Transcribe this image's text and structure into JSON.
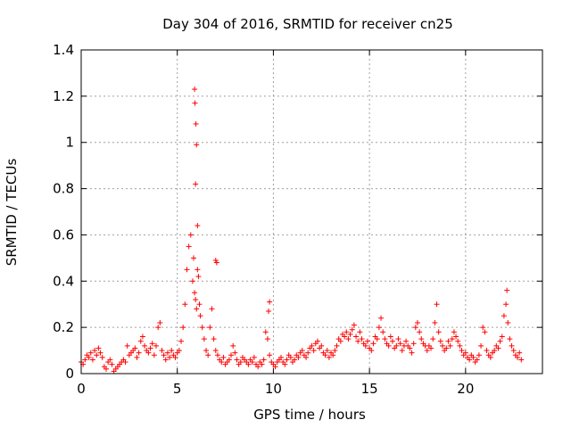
{
  "chart_data": {
    "type": "scatter",
    "title": "Day 304 of 2016, SRMTID for receiver cn25",
    "xlabel": "GPS time / hours",
    "ylabel": "SRMTID / TECUs",
    "xlim": [
      0,
      24
    ],
    "ylim": [
      0,
      1.4
    ],
    "xticks": [
      0,
      5,
      10,
      15,
      20
    ],
    "xtick_labels": [
      "0",
      "5",
      "10",
      "15",
      "20"
    ],
    "yticks": [
      0,
      0.2,
      0.4,
      0.6,
      0.8,
      1,
      1.2,
      1.4
    ],
    "ytick_labels": [
      "0",
      "0.2",
      "0.4",
      "0.6",
      "0.8",
      "1",
      "1.2",
      "1.4"
    ],
    "grid": true,
    "marker": "+",
    "series": [
      {
        "color": "#ff0000",
        "x": [
          0.0,
          0.1,
          0.2,
          0.3,
          0.4,
          0.5,
          0.6,
          0.7,
          0.8,
          0.9,
          1.0,
          1.1,
          1.2,
          1.3,
          1.4,
          1.5,
          1.6,
          1.7,
          1.8,
          1.9,
          2.0,
          2.1,
          2.2,
          2.3,
          2.4,
          2.5,
          2.6,
          2.7,
          2.8,
          2.9,
          3.0,
          3.1,
          3.2,
          3.3,
          3.4,
          3.5,
          3.6,
          3.7,
          3.8,
          3.9,
          4.0,
          4.1,
          4.2,
          4.3,
          4.4,
          4.5,
          4.6,
          4.7,
          4.8,
          4.9,
          5.0,
          5.1,
          5.2,
          5.3,
          5.4,
          5.5,
          5.6,
          5.7,
          5.8,
          5.85,
          5.9,
          5.95,
          6.0,
          6.05,
          6.1,
          6.15,
          6.2,
          6.3,
          6.4,
          6.5,
          6.6,
          6.7,
          6.8,
          6.9,
          7.0,
          7.1,
          7.2,
          7.3,
          7.4,
          7.5,
          7.6,
          7.7,
          7.8,
          7.9,
          8.0,
          8.1,
          8.2,
          8.3,
          8.4,
          8.5,
          8.6,
          8.7,
          8.8,
          8.9,
          9.0,
          9.1,
          9.2,
          9.3,
          9.4,
          9.5,
          9.6,
          9.7,
          9.8,
          9.9,
          10.0,
          10.1,
          10.2,
          10.3,
          10.4,
          10.5,
          10.6,
          10.7,
          10.8,
          10.9,
          11.0,
          11.1,
          11.2,
          11.3,
          11.4,
          11.5,
          11.6,
          11.7,
          11.8,
          11.9,
          12.0,
          12.1,
          12.2,
          12.3,
          12.4,
          12.5,
          12.6,
          12.7,
          12.8,
          12.9,
          13.0,
          13.1,
          13.2,
          13.3,
          13.4,
          13.5,
          13.6,
          13.7,
          13.8,
          13.9,
          14.0,
          14.1,
          14.2,
          14.3,
          14.4,
          14.5,
          14.6,
          14.7,
          14.8,
          14.9,
          15.0,
          15.1,
          15.2,
          15.3,
          15.4,
          15.5,
          15.6,
          15.7,
          15.8,
          15.9,
          16.0,
          16.1,
          16.2,
          16.3,
          16.4,
          16.5,
          16.6,
          16.7,
          16.8,
          16.9,
          17.0,
          17.1,
          17.2,
          17.3,
          17.4,
          17.5,
          17.6,
          17.7,
          17.8,
          17.9,
          18.0,
          18.1,
          18.2,
          18.3,
          18.4,
          18.5,
          18.6,
          18.7,
          18.8,
          18.9,
          19.0,
          19.1,
          19.2,
          19.3,
          19.4,
          19.5,
          19.6,
          19.7,
          19.8,
          19.9,
          20.0,
          20.1,
          20.2,
          20.3,
          20.4,
          20.5,
          20.6,
          20.7,
          20.8,
          20.9,
          21.0,
          21.1,
          21.2,
          21.3,
          21.4,
          21.5,
          21.6,
          21.7,
          21.8,
          21.9,
          22.0,
          22.1,
          22.2,
          22.3,
          22.4,
          22.5,
          22.6,
          22.7,
          22.8,
          22.9,
          9.8,
          9.75,
          22.15,
          7.0,
          7.05,
          6.05,
          5.95,
          5.9,
          5.92,
          5.97,
          6.0
        ],
        "y": [
          0.05,
          0.04,
          0.06,
          0.08,
          0.07,
          0.09,
          0.06,
          0.1,
          0.08,
          0.11,
          0.09,
          0.07,
          0.03,
          0.02,
          0.05,
          0.06,
          0.04,
          0.01,
          0.02,
          0.03,
          0.04,
          0.05,
          0.06,
          0.05,
          0.12,
          0.08,
          0.09,
          0.1,
          0.11,
          0.07,
          0.09,
          0.14,
          0.16,
          0.12,
          0.1,
          0.09,
          0.11,
          0.13,
          0.08,
          0.12,
          0.2,
          0.22,
          0.1,
          0.08,
          0.06,
          0.09,
          0.07,
          0.1,
          0.08,
          0.07,
          0.09,
          0.1,
          0.14,
          0.2,
          0.3,
          0.45,
          0.55,
          0.6,
          0.4,
          0.5,
          0.35,
          0.32,
          0.28,
          0.45,
          0.42,
          0.3,
          0.25,
          0.2,
          0.15,
          0.1,
          0.08,
          0.2,
          0.28,
          0.15,
          0.1,
          0.08,
          0.06,
          0.05,
          0.07,
          0.04,
          0.05,
          0.06,
          0.08,
          0.12,
          0.09,
          0.06,
          0.04,
          0.05,
          0.07,
          0.06,
          0.05,
          0.04,
          0.06,
          0.05,
          0.07,
          0.04,
          0.03,
          0.05,
          0.04,
          0.06,
          0.18,
          0.15,
          0.08,
          0.05,
          0.04,
          0.03,
          0.05,
          0.06,
          0.07,
          0.05,
          0.04,
          0.06,
          0.08,
          0.07,
          0.05,
          0.06,
          0.08,
          0.07,
          0.09,
          0.1,
          0.08,
          0.07,
          0.09,
          0.11,
          0.12,
          0.1,
          0.13,
          0.14,
          0.11,
          0.12,
          0.09,
          0.08,
          0.1,
          0.07,
          0.09,
          0.08,
          0.1,
          0.12,
          0.15,
          0.14,
          0.17,
          0.16,
          0.18,
          0.15,
          0.17,
          0.19,
          0.21,
          0.16,
          0.14,
          0.18,
          0.15,
          0.13,
          0.12,
          0.14,
          0.11,
          0.1,
          0.13,
          0.16,
          0.15,
          0.2,
          0.24,
          0.18,
          0.15,
          0.13,
          0.12,
          0.16,
          0.14,
          0.11,
          0.12,
          0.15,
          0.13,
          0.1,
          0.12,
          0.14,
          0.12,
          0.11,
          0.09,
          0.13,
          0.2,
          0.22,
          0.18,
          0.15,
          0.13,
          0.12,
          0.1,
          0.12,
          0.11,
          0.15,
          0.22,
          0.3,
          0.18,
          0.14,
          0.12,
          0.1,
          0.11,
          0.14,
          0.12,
          0.15,
          0.18,
          0.16,
          0.14,
          0.12,
          0.1,
          0.08,
          0.09,
          0.07,
          0.06,
          0.08,
          0.07,
          0.05,
          0.06,
          0.08,
          0.12,
          0.2,
          0.18,
          0.1,
          0.08,
          0.07,
          0.09,
          0.1,
          0.12,
          0.11,
          0.14,
          0.16,
          0.25,
          0.3,
          0.22,
          0.15,
          0.12,
          0.1,
          0.08,
          0.07,
          0.09,
          0.06,
          0.31,
          0.27,
          0.36,
          0.49,
          0.48,
          0.64,
          0.82,
          1.23,
          1.17,
          1.08,
          0.99
        ],
        "note_free": true
      }
    ]
  }
}
